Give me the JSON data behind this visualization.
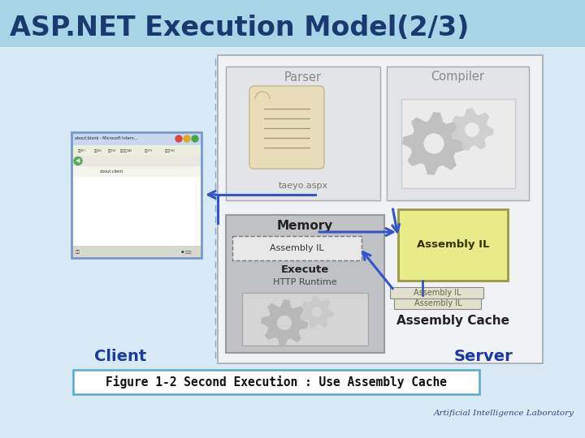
{
  "title": "ASP.NET Execution Model(2/3)",
  "title_bg": "#a8d4e8",
  "title_color": "#1a3a6e",
  "bg_color": "#d8eaf5",
  "fig_caption": "Figure 1-2 Second Execution : Use Assembly Cache",
  "footer": "Artificial Intelligence Laboratory",
  "server_outer_color": "#f0f2f5",
  "server_outer_border": "#aaaaaa",
  "parser_box_color": "#e2e4e7",
  "compiler_box_color": "#e2e4e7",
  "memory_box_color": "#c0c2c5",
  "assembly_il_cache_color": "#e8ec88",
  "assembly_il_cache_border": "#aaaa44",
  "arrow_color": "#3355cc",
  "client_color": "#1a3a9e",
  "server_color": "#1a3a9e",
  "caption_border": "#55aacc",
  "footer_color": "#334488"
}
